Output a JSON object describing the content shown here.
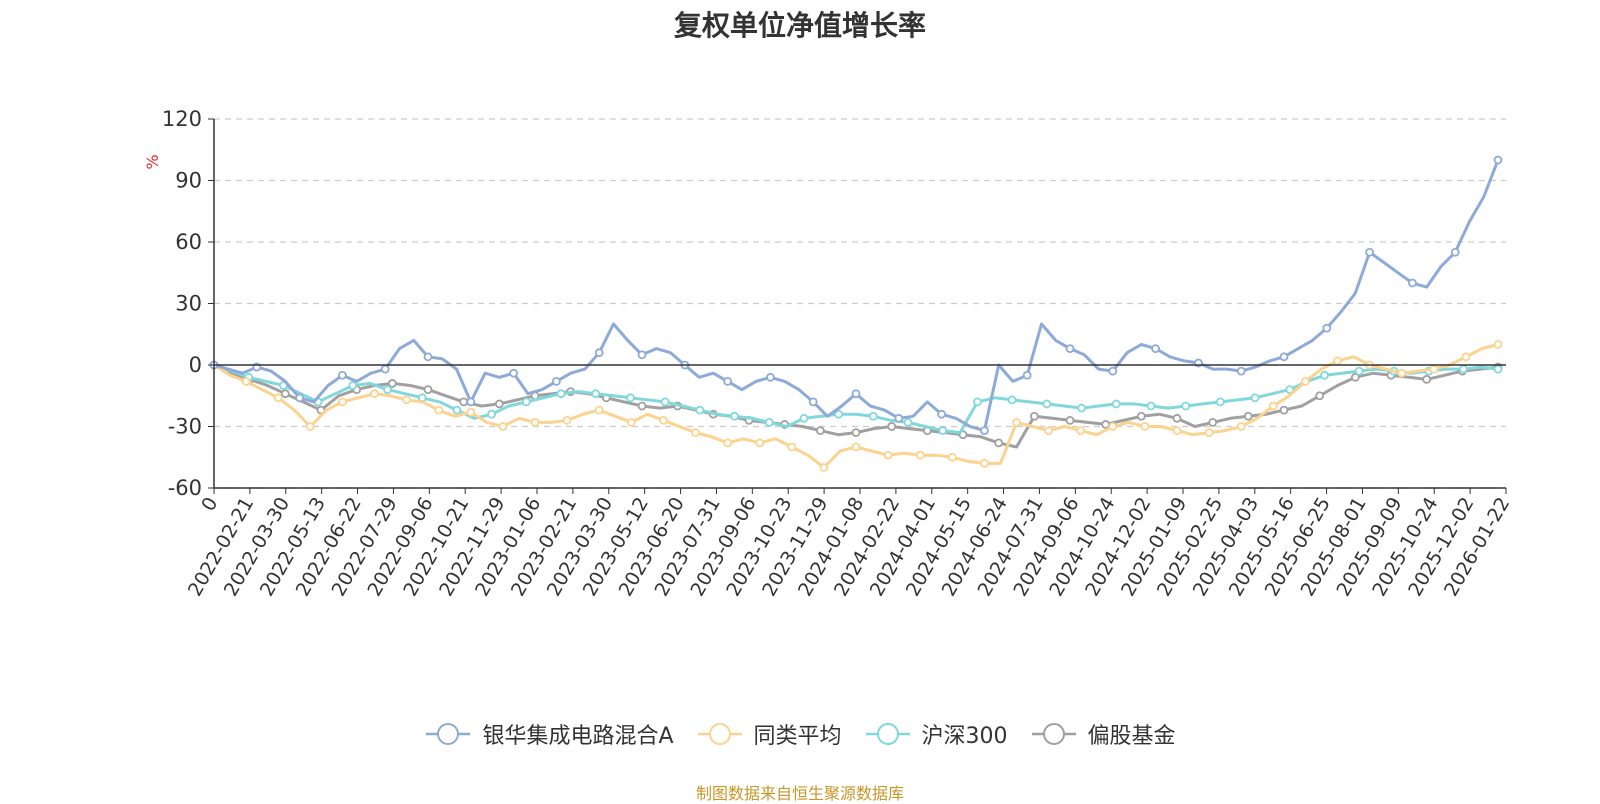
{
  "chart_data": {
    "type": "line",
    "title": "复权单位净值增长率",
    "ylabel": "%",
    "ylim": [
      -60,
      120
    ],
    "yticks": [
      "120",
      "90",
      "60",
      "30",
      "0",
      "-30",
      "-60"
    ],
    "x_ticks": [
      "0",
      "2022-02-21",
      "2022-03-30",
      "2022-05-13",
      "2022-06-22",
      "2022-07-29",
      "2022-09-06",
      "2022-10-21",
      "2022-11-29",
      "2023-01-06",
      "2023-02-21",
      "2023-03-30",
      "2023-05-12",
      "2023-06-20",
      "2023-07-31",
      "2023-09-06",
      "2023-10-23",
      "2023-11-29",
      "2024-01-08",
      "2024-02-22",
      "2024-04-01",
      "2024-05-15",
      "2024-06-24",
      "2024-07-31",
      "2024-09-06",
      "2024-10-24",
      "2024-12-02",
      "2025-01-09",
      "2025-02-25",
      "2025-04-03",
      "2025-05-16",
      "2025-06-25",
      "2025-08-01",
      "2025-09-09",
      "2025-10-24",
      "2025-12-02",
      "2026-01-22"
    ],
    "grid": "horizontal-dashed",
    "legend_position": "bottom",
    "series": [
      {
        "name": "银华集成电路混合A",
        "color": "#8eaad8",
        "values": [
          0,
          -2,
          -4,
          -1,
          -3,
          -8,
          -16,
          -18,
          -10,
          -5,
          -8,
          -4,
          -2,
          8,
          12,
          4,
          3,
          -2,
          -18,
          -4,
          -6,
          -4,
          -14,
          -12,
          -8,
          -4,
          -2,
          6,
          20,
          12,
          5,
          8,
          6,
          0,
          -6,
          -4,
          -8,
          -12,
          -8,
          -6,
          -8,
          -12,
          -18,
          -25,
          -20,
          -14,
          -20,
          -22,
          -26,
          -25,
          -18,
          -24,
          -26,
          -30,
          -32,
          0,
          -8,
          -5,
          20,
          12,
          8,
          5,
          -2,
          -3,
          6,
          10,
          8,
          4,
          2,
          1,
          -2,
          -2,
          -3,
          -1,
          2,
          4,
          8,
          12,
          18,
          26,
          35,
          55,
          50,
          45,
          40,
          38,
          48,
          55,
          70,
          82,
          100
        ]
      },
      {
        "name": "同类平均",
        "color": "#fcd38e",
        "values": [
          0,
          -5,
          -8,
          -12,
          -16,
          -22,
          -30,
          -22,
          -18,
          -16,
          -14,
          -15,
          -17,
          -18,
          -22,
          -25,
          -23,
          -28,
          -30,
          -26,
          -28,
          -28,
          -27,
          -24,
          -22,
          -25,
          -28,
          -24,
          -27,
          -30,
          -33,
          -35,
          -38,
          -36,
          -38,
          -36,
          -40,
          -44,
          -50,
          -42,
          -40,
          -42,
          -44,
          -43,
          -44,
          -44,
          -45,
          -47,
          -48,
          -48,
          -28,
          -30,
          -32,
          -30,
          -32,
          -34,
          -30,
          -28,
          -30,
          -30,
          -32,
          -34,
          -33,
          -32,
          -30,
          -26,
          -20,
          -15,
          -8,
          -2,
          2,
          4,
          0,
          -2,
          -4,
          -3,
          -2,
          0,
          4,
          8,
          10
        ]
      },
      {
        "name": "沪深300",
        "color": "#80d8dc",
        "values": [
          0,
          -3,
          -6,
          -8,
          -10,
          -14,
          -18,
          -14,
          -10,
          -9,
          -12,
          -14,
          -16,
          -18,
          -22,
          -26,
          -24,
          -20,
          -18,
          -16,
          -14,
          -13,
          -14,
          -15,
          -16,
          -17,
          -18,
          -20,
          -22,
          -24,
          -25,
          -26,
          -28,
          -30,
          -26,
          -25,
          -24,
          -24,
          -25,
          -27,
          -28,
          -30,
          -32,
          -33,
          -18,
          -16,
          -17,
          -18,
          -19,
          -20,
          -21,
          -20,
          -19,
          -19,
          -20,
          -21,
          -20,
          -19,
          -18,
          -17,
          -16,
          -14,
          -12,
          -8,
          -5,
          -4,
          -3,
          -2,
          -3,
          -4,
          -3,
          -2,
          -2,
          -1,
          -2
        ]
      },
      {
        "name": "偏股基金",
        "color": "#a0a0a0",
        "values": [
          0,
          -4,
          -7,
          -10,
          -14,
          -18,
          -22,
          -15,
          -12,
          -10,
          -9,
          -10,
          -12,
          -15,
          -18,
          -20,
          -19,
          -17,
          -15,
          -14,
          -13,
          -14,
          -16,
          -18,
          -20,
          -21,
          -20,
          -22,
          -24,
          -25,
          -27,
          -28,
          -29,
          -30,
          -32,
          -34,
          -33,
          -31,
          -30,
          -31,
          -32,
          -33,
          -34,
          -35,
          -38,
          -40,
          -25,
          -26,
          -27,
          -28,
          -29,
          -27,
          -25,
          -24,
          -26,
          -30,
          -28,
          -26,
          -25,
          -24,
          -22,
          -20,
          -15,
          -10,
          -6,
          -4,
          -5,
          -6,
          -7,
          -5,
          -3,
          -2,
          -1
        ]
      }
    ],
    "source": "制图数据来自恒生聚源数据库"
  }
}
